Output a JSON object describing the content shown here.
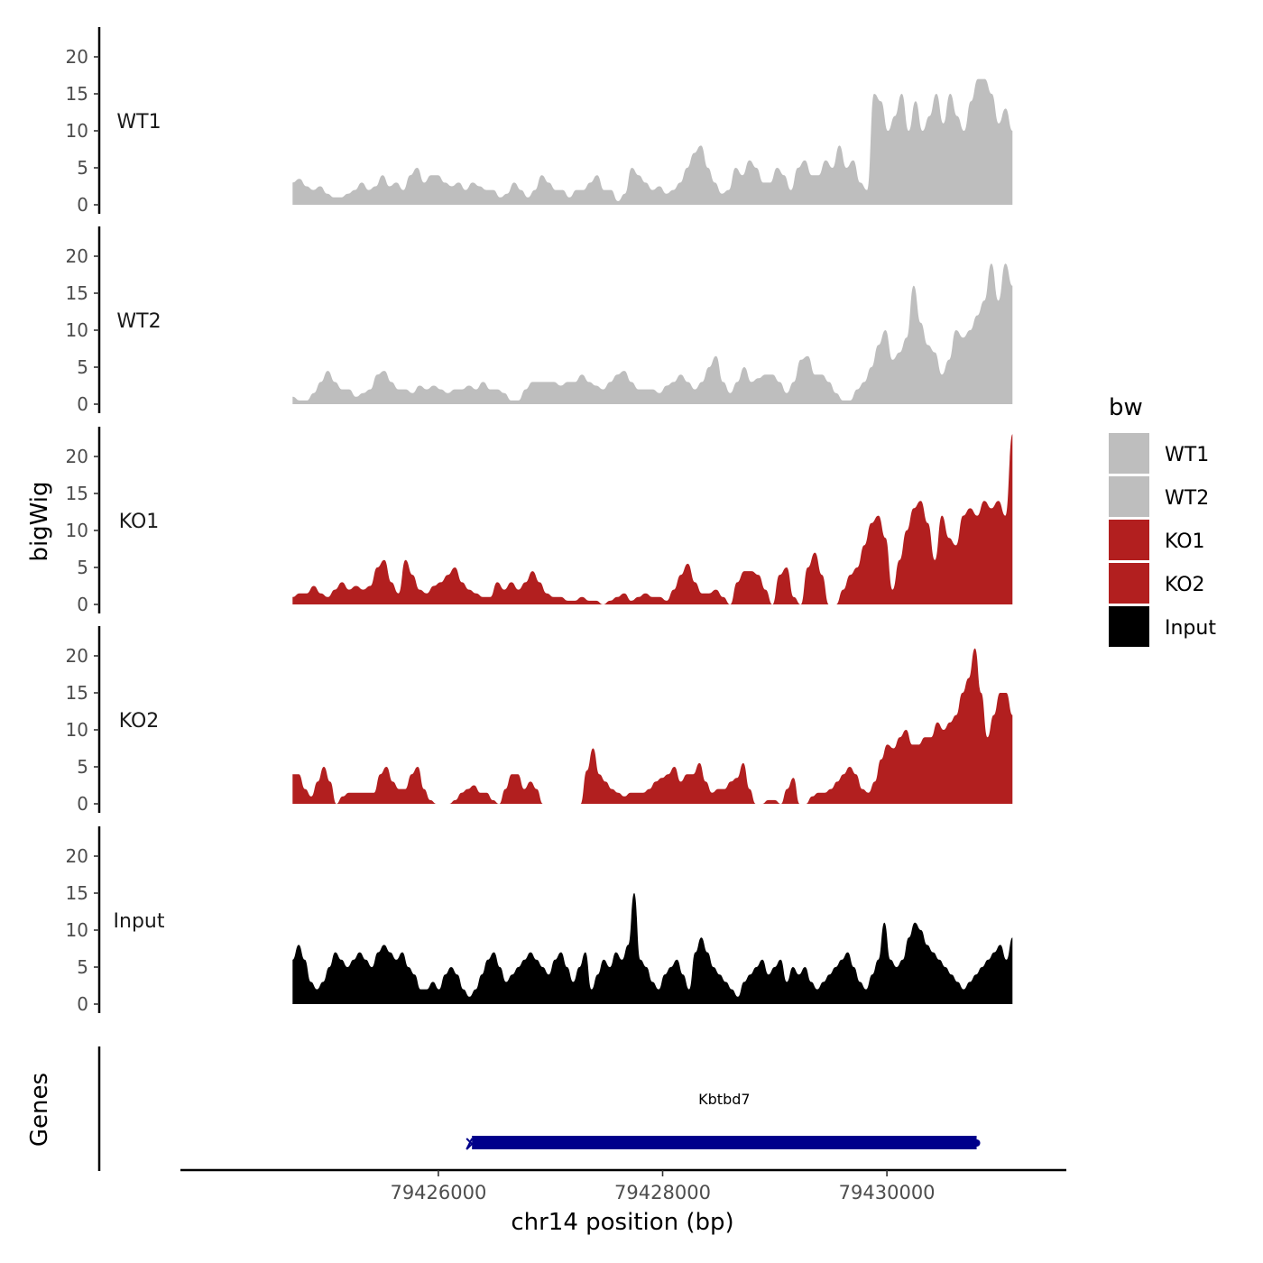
{
  "chart_data": {
    "type": "area",
    "xlabel": "chr14 position (bp)",
    "ylabel": "bigWig",
    "genes_label": "Genes",
    "xlim": [
      79423700,
      79431600
    ],
    "ylim": [
      0,
      24
    ],
    "x_ticks": [
      79426000,
      79428000,
      79430000
    ],
    "x_tick_labels": [
      "79426000",
      "79428000",
      "79430000"
    ],
    "y_ticks": [
      0,
      5,
      10,
      15,
      20
    ],
    "y_tick_labels": [
      "0",
      "5",
      "10",
      "15",
      "20"
    ],
    "track_range": [
      79424700,
      79431120
    ],
    "legend": {
      "title": "bw",
      "position": "right",
      "entries": [
        {
          "label": "WT1",
          "color": "#bebebe"
        },
        {
          "label": "WT2",
          "color": "#bebebe"
        },
        {
          "label": "KO1",
          "color": "#b21f1f"
        },
        {
          "label": "KO2",
          "color": "#b21f1f"
        },
        {
          "label": "Input",
          "color": "#000000"
        }
      ]
    },
    "series": [
      {
        "name": "WT1",
        "color": "#bebebe",
        "values": [
          3,
          3.5,
          2.5,
          2,
          2.5,
          1.5,
          1,
          1,
          1.5,
          2,
          3,
          2,
          2.5,
          4,
          2.5,
          3,
          2,
          4,
          5,
          3,
          4,
          4,
          3,
          2.5,
          3,
          2,
          3,
          2.5,
          2,
          2,
          1,
          1.5,
          3,
          2,
          1,
          2,
          4,
          3,
          2,
          2,
          1,
          2,
          2,
          3,
          4,
          2,
          2,
          0.5,
          1.5,
          5,
          4,
          3,
          2,
          2.5,
          1.5,
          2,
          3,
          5,
          7,
          8,
          5,
          3,
          1.5,
          2,
          5,
          4,
          6,
          5,
          3,
          3,
          5,
          4,
          2,
          5,
          6,
          4,
          4,
          6,
          5,
          8,
          5,
          6,
          3,
          2,
          15,
          14,
          10,
          12,
          15,
          10,
          14,
          10,
          12,
          15,
          11,
          15,
          12,
          10,
          14,
          17,
          17,
          15,
          11,
          13,
          10
        ]
      },
      {
        "name": "WT2",
        "color": "#bebebe",
        "values": [
          1,
          0.5,
          0.5,
          1.5,
          3,
          4.5,
          3,
          2,
          2,
          1,
          1.5,
          2,
          4,
          4.5,
          3,
          2,
          2,
          1.5,
          2.5,
          2,
          2.5,
          2,
          1.5,
          2,
          2,
          2.5,
          2,
          3,
          2,
          2,
          1.5,
          0.5,
          0.5,
          2,
          3,
          3,
          3,
          3,
          2.5,
          3,
          3,
          4,
          3,
          2.5,
          2,
          3,
          4,
          4.5,
          3,
          2,
          2,
          2,
          1.5,
          2.5,
          3,
          4,
          3,
          2,
          3,
          5,
          6.5,
          3,
          1.5,
          3,
          5,
          3,
          3.5,
          4,
          4,
          3,
          1.5,
          3,
          6,
          6.5,
          4,
          4,
          3,
          1.5,
          0.5,
          0.5,
          2,
          3,
          5,
          8,
          10,
          6,
          7,
          9,
          16,
          11,
          8,
          7,
          4,
          6,
          10,
          9,
          10,
          12,
          14,
          19,
          14,
          19,
          16
        ]
      },
      {
        "name": "KO1",
        "color": "#b21f1f",
        "values": [
          1,
          1.5,
          1.5,
          2.5,
          1.5,
          1,
          2,
          3,
          2,
          2.5,
          2,
          2.5,
          5,
          6,
          3,
          1.5,
          6,
          4,
          2,
          1.5,
          2.5,
          3,
          4,
          5,
          3,
          2,
          1.5,
          1,
          1,
          3,
          2,
          3,
          2,
          3,
          4.5,
          3,
          1.5,
          1,
          1,
          0.5,
          0.5,
          1,
          0.5,
          0.5,
          0,
          0.5,
          1,
          1.5,
          0.5,
          1,
          1.5,
          1,
          1,
          0.5,
          2,
          4,
          5.5,
          3,
          1.5,
          1.5,
          2,
          1,
          0,
          3,
          4.5,
          4.5,
          4,
          2,
          0,
          4,
          5,
          1,
          0,
          5,
          7,
          4,
          0,
          0,
          2,
          4,
          5,
          8,
          11,
          12,
          9,
          2,
          6,
          10,
          13,
          14,
          11,
          6,
          12,
          9,
          8,
          12,
          13,
          12,
          14,
          13,
          14,
          12,
          23
        ]
      },
      {
        "name": "KO2",
        "color": "#b21f1f",
        "values": [
          4,
          4,
          2,
          1,
          3,
          5,
          3,
          0,
          1,
          1.5,
          1.5,
          1.5,
          1.5,
          1.5,
          4,
          5,
          3,
          2,
          2,
          4,
          5,
          2,
          0.5,
          0,
          0,
          0,
          0.5,
          1.5,
          2,
          2.5,
          1.5,
          1.5,
          0.5,
          0,
          2,
          4,
          4,
          2,
          3,
          2,
          0,
          0,
          0,
          0,
          0,
          0,
          0,
          4.5,
          7.5,
          4,
          3,
          2,
          1.5,
          1,
          1.5,
          1.5,
          1.5,
          2,
          3,
          3.5,
          4,
          5,
          3,
          4,
          4,
          5.5,
          3,
          1.5,
          2,
          2,
          3,
          3.5,
          5.5,
          2,
          0,
          0,
          0.5,
          0.5,
          0,
          2,
          3.5,
          0,
          0,
          1,
          1.5,
          1.5,
          2,
          3,
          4,
          5,
          4,
          2,
          1.5,
          3,
          6,
          8,
          7.5,
          9,
          10,
          8,
          8,
          9,
          9,
          11,
          10,
          11,
          12,
          15,
          17,
          21,
          15,
          9,
          12,
          15,
          15,
          12
        ]
      },
      {
        "name": "Input",
        "color": "#000000",
        "values": [
          6,
          8,
          6,
          3,
          2,
          3,
          5,
          7,
          6,
          5,
          6,
          7,
          6,
          5,
          7,
          8,
          7,
          6,
          7,
          5,
          4,
          2,
          2,
          3,
          2,
          4,
          5,
          4,
          2,
          1,
          2,
          4,
          6,
          7,
          5,
          3,
          4,
          5,
          6,
          7,
          6,
          5,
          4,
          6,
          7,
          5,
          3,
          5,
          7,
          2,
          4,
          6,
          5,
          7,
          6,
          8,
          15,
          6,
          5,
          3,
          2,
          4,
          5,
          6,
          4,
          2,
          7,
          9,
          7,
          5,
          4,
          3,
          2,
          1,
          3,
          4,
          5,
          6,
          4,
          5,
          6,
          3,
          5,
          4,
          5,
          3,
          2,
          3,
          4,
          5,
          6,
          7,
          5,
          3,
          2,
          4,
          6,
          11,
          6,
          5,
          6,
          9,
          11,
          10,
          8,
          7,
          6,
          5,
          4,
          3,
          2,
          3,
          4,
          5,
          6,
          7,
          8,
          6,
          9
        ]
      }
    ],
    "gene": {
      "name": "Kbtbd7",
      "start": 79426300,
      "end": 79430800,
      "color": "#00008b",
      "strand": "-"
    }
  }
}
